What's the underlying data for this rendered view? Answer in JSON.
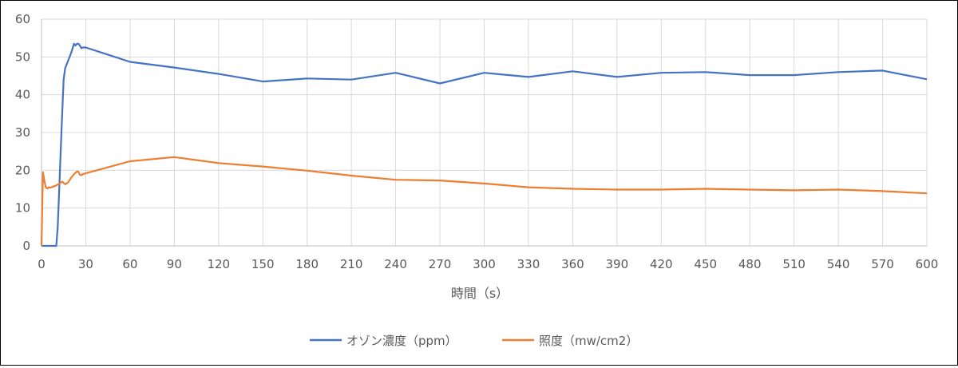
{
  "chart_data": {
    "type": "line",
    "title": "",
    "xlabel": "時間（s）",
    "ylabel": "",
    "xlim": [
      0,
      600
    ],
    "ylim": [
      0,
      60
    ],
    "xticks": [
      0,
      30,
      60,
      90,
      120,
      150,
      180,
      210,
      240,
      270,
      300,
      330,
      360,
      390,
      420,
      450,
      480,
      510,
      540,
      570,
      600
    ],
    "yticks": [
      0,
      10,
      20,
      30,
      40,
      50,
      60
    ],
    "xtick_labels": [
      "0",
      "30",
      "60",
      "90",
      "120",
      "150",
      "180",
      "210",
      "240",
      "270",
      "300",
      "330",
      "360",
      "390",
      "420",
      "450",
      "480",
      "510",
      "540",
      "570",
      "600"
    ],
    "ytick_labels": [
      "0",
      "10",
      "20",
      "30",
      "40",
      "50",
      "60"
    ],
    "grid": true,
    "legend_position": "bottom",
    "series": [
      {
        "name": "オゾン濃度（ppm）",
        "color": "#4472C4",
        "x": [
          0,
          10,
          11,
          12,
          13,
          14,
          15,
          16,
          18,
          20,
          22,
          23,
          24,
          25,
          26,
          27,
          28,
          30,
          60,
          90,
          120,
          150,
          180,
          210,
          240,
          270,
          300,
          330,
          360,
          390,
          420,
          450,
          480,
          510,
          540,
          570,
          600
        ],
        "y": [
          0,
          0,
          5,
          15,
          25,
          35,
          44,
          47,
          49,
          51,
          53.5,
          53,
          53.5,
          53.5,
          53,
          52.3,
          52.5,
          52.5,
          48.7,
          47.2,
          45.5,
          43.5,
          44.3,
          44,
          45.8,
          43,
          45.8,
          44.7,
          46.2,
          44.7,
          45.8,
          46,
          45.2,
          45.2,
          46,
          46.4,
          44.1
        ]
      },
      {
        "name": "照度（mw/cm2）",
        "color": "#ED7D31",
        "x": [
          0,
          1,
          2,
          3,
          4,
          5,
          6,
          8,
          10,
          12,
          14,
          16,
          18,
          20,
          22,
          24,
          25,
          26,
          27,
          28,
          30,
          60,
          90,
          120,
          150,
          180,
          210,
          240,
          270,
          300,
          330,
          360,
          390,
          420,
          450,
          480,
          510,
          540,
          570,
          600
        ],
        "y": [
          0,
          19.5,
          17,
          15.5,
          15.2,
          15.5,
          15.4,
          15.7,
          16,
          16.5,
          17,
          16.3,
          16.8,
          18,
          19,
          19.7,
          19.6,
          18.8,
          18.7,
          19,
          19.2,
          22.4,
          23.5,
          21.9,
          21,
          19.9,
          18.6,
          17.5,
          17.3,
          16.5,
          15.5,
          15.1,
          14.9,
          14.9,
          15.1,
          14.9,
          14.7,
          14.9,
          14.5,
          13.9
        ]
      }
    ]
  }
}
